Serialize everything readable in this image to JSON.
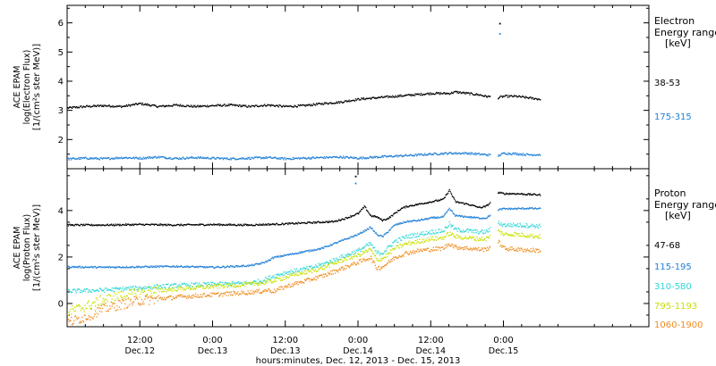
{
  "figure": {
    "xlabel": "hours:minutes, Dec. 12, 2013 - Dec. 15, 2013"
  },
  "chart_data": [
    {
      "type": "scatter",
      "panel": "electron",
      "ylabel_lines": [
        "ACE EPAM",
        "log(Electron Flux)",
        "[1/(cm²s ster MeV)]"
      ],
      "legend_title_lines": [
        "Electron",
        "Energy range",
        "[keV]"
      ],
      "xlim": [
        0,
        96
      ],
      "ylim": [
        1.0,
        6.6
      ],
      "yticks": [
        2,
        3,
        4,
        5,
        6
      ],
      "x_ticks": [
        {
          "t": 12,
          "top": "12:00",
          "bottom": "Dec.12"
        },
        {
          "t": 24,
          "top": "0:00",
          "bottom": "Dec.13"
        },
        {
          "t": 36,
          "top": "12:00",
          "bottom": "Dec.13"
        },
        {
          "t": 48,
          "top": "0:00",
          "bottom": "Dec.14"
        },
        {
          "t": 60,
          "top": "12:00",
          "bottom": "Dec.14"
        },
        {
          "t": 72,
          "top": "0:00",
          "bottom": "Dec.15"
        }
      ],
      "series": [
        {
          "name": "38-53",
          "color": "#000000",
          "x": [
            0,
            3,
            6,
            9,
            12,
            15,
            18,
            21,
            24,
            27,
            30,
            33,
            36,
            39,
            42,
            45,
            48,
            51,
            54,
            57,
            60,
            63,
            64,
            66,
            68,
            69,
            70,
            71,
            72,
            74,
            76,
            78
          ],
          "y": [
            3.1,
            3.15,
            3.18,
            3.15,
            3.25,
            3.15,
            3.2,
            3.15,
            3.18,
            3.2,
            3.15,
            3.2,
            3.15,
            3.18,
            3.25,
            3.3,
            3.4,
            3.45,
            3.5,
            3.55,
            3.6,
            3.6,
            3.65,
            3.6,
            3.55,
            3.5,
            3.48,
            3.45,
            3.5,
            3.5,
            3.45,
            3.4
          ]
        },
        {
          "name": "175-315",
          "color": "#1f7fd6",
          "x": [
            0,
            3,
            6,
            9,
            12,
            15,
            18,
            21,
            24,
            27,
            30,
            33,
            36,
            39,
            42,
            45,
            48,
            51,
            54,
            57,
            60,
            63,
            66,
            69,
            70,
            71,
            72,
            74,
            76,
            78
          ],
          "y": [
            1.35,
            1.38,
            1.36,
            1.4,
            1.38,
            1.42,
            1.37,
            1.4,
            1.38,
            1.36,
            1.38,
            1.4,
            1.36,
            1.38,
            1.4,
            1.42,
            1.38,
            1.42,
            1.45,
            1.48,
            1.52,
            1.55,
            1.55,
            1.5,
            1.48,
            1.46,
            1.55,
            1.53,
            1.5,
            1.5
          ]
        }
      ]
    },
    {
      "type": "scatter",
      "panel": "proton",
      "ylabel_lines": [
        "ACE EPAM",
        "log(Proton Flux)",
        "[1/(cm²s ster MeV)]"
      ],
      "legend_title_lines": [
        "Proton",
        "Energy range",
        "[keV]"
      ],
      "xlim": [
        0,
        96
      ],
      "ylim": [
        -1.0,
        5.8
      ],
      "yticks": [
        0,
        2,
        4
      ],
      "x_ticks": [
        {
          "t": 12,
          "top": "12:00",
          "bottom": "Dec.12"
        },
        {
          "t": 24,
          "top": "0:00",
          "bottom": "Dec.13"
        },
        {
          "t": 36,
          "top": "12:00",
          "bottom": "Dec.13"
        },
        {
          "t": 48,
          "top": "0:00",
          "bottom": "Dec.14"
        },
        {
          "t": 60,
          "top": "12:00",
          "bottom": "Dec.14"
        },
        {
          "t": 72,
          "top": "0:00",
          "bottom": "Dec.15"
        }
      ],
      "series": [
        {
          "name": "47-68",
          "color": "#000000",
          "x": [
            0,
            6,
            12,
            18,
            24,
            30,
            36,
            40,
            44,
            46,
            47,
            48,
            49,
            50,
            51,
            52,
            53,
            54,
            55,
            56,
            57,
            58,
            60,
            62,
            63,
            64,
            66,
            68,
            69,
            70,
            71,
            72,
            74,
            76,
            78
          ],
          "y": [
            3.4,
            3.4,
            3.42,
            3.4,
            3.42,
            3.4,
            3.45,
            3.5,
            3.55,
            3.7,
            3.8,
            3.9,
            4.2,
            3.8,
            3.75,
            3.6,
            3.7,
            3.9,
            4.1,
            4.2,
            4.25,
            4.3,
            4.4,
            4.5,
            4.9,
            4.4,
            4.3,
            4.15,
            4.2,
            4.4,
            4.8,
            4.75,
            4.75,
            4.72,
            4.7
          ]
        },
        {
          "name": "115-195",
          "color": "#1f7fd6",
          "x": [
            0,
            6,
            12,
            18,
            24,
            30,
            32,
            33,
            34,
            36,
            38,
            40,
            42,
            44,
            46,
            48,
            50,
            51,
            52,
            54,
            56,
            58,
            60,
            62,
            63,
            64,
            66,
            68,
            69,
            70,
            71,
            72,
            74,
            76,
            78
          ],
          "y": [
            1.6,
            1.58,
            1.6,
            1.62,
            1.58,
            1.65,
            1.75,
            1.85,
            2.0,
            2.1,
            2.2,
            2.3,
            2.4,
            2.6,
            2.8,
            3.0,
            3.3,
            3.0,
            2.9,
            3.4,
            3.55,
            3.6,
            3.7,
            3.75,
            4.1,
            3.8,
            3.75,
            3.7,
            3.7,
            3.85,
            4.05,
            4.1,
            4.1,
            4.12,
            4.1
          ]
        },
        {
          "name": "310-580",
          "color": "#2fd6d6",
          "x": [
            0,
            6,
            12,
            18,
            24,
            30,
            32,
            33,
            34,
            36,
            38,
            40,
            42,
            44,
            46,
            48,
            50,
            51,
            52,
            54,
            56,
            58,
            60,
            62,
            63,
            64,
            66,
            68,
            69,
            70,
            71,
            72,
            74,
            76,
            78
          ],
          "y": [
            0.55,
            0.6,
            0.7,
            0.8,
            0.85,
            0.9,
            1.0,
            1.1,
            1.2,
            1.35,
            1.45,
            1.55,
            1.7,
            1.9,
            2.1,
            2.3,
            2.6,
            2.2,
            2.2,
            2.7,
            2.9,
            3.0,
            3.1,
            3.15,
            3.45,
            3.2,
            3.15,
            3.1,
            3.1,
            3.25,
            3.5,
            3.4,
            3.4,
            3.38,
            3.35
          ]
        },
        {
          "name": "795-1193",
          "color": "#c8e000",
          "x": [
            0,
            3,
            6,
            9,
            12,
            18,
            24,
            30,
            32,
            33,
            34,
            36,
            38,
            40,
            42,
            44,
            46,
            48,
            50,
            51,
            52,
            54,
            56,
            58,
            60,
            62,
            63,
            64,
            66,
            68,
            69,
            70,
            71,
            72,
            74,
            76,
            78
          ],
          "y": [
            -0.35,
            -0.1,
            0.2,
            0.35,
            0.5,
            0.65,
            0.75,
            0.85,
            0.9,
            0.95,
            1.0,
            1.15,
            1.3,
            1.4,
            1.55,
            1.75,
            1.95,
            2.1,
            2.35,
            1.9,
            1.95,
            2.4,
            2.6,
            2.7,
            2.8,
            2.85,
            3.05,
            2.9,
            2.85,
            2.8,
            2.8,
            2.95,
            3.15,
            3.0,
            3.0,
            2.95,
            2.9
          ]
        },
        {
          "name": "1060-1900",
          "color": "#f08c1e",
          "x": [
            0,
            3,
            6,
            9,
            12,
            18,
            24,
            30,
            32,
            33,
            34,
            36,
            38,
            40,
            42,
            44,
            46,
            48,
            50,
            51,
            52,
            54,
            56,
            58,
            60,
            62,
            63,
            64,
            66,
            68,
            69,
            70,
            71,
            72,
            74,
            76,
            78
          ],
          "y": [
            -0.8,
            -0.55,
            -0.2,
            0.0,
            0.15,
            0.3,
            0.4,
            0.5,
            0.55,
            0.6,
            0.55,
            0.75,
            0.9,
            1.05,
            1.2,
            1.4,
            1.6,
            1.8,
            2.0,
            1.55,
            1.6,
            2.0,
            2.2,
            2.3,
            2.35,
            2.4,
            2.6,
            2.45,
            2.4,
            2.35,
            2.35,
            2.5,
            2.7,
            2.4,
            2.35,
            2.32,
            2.3
          ]
        }
      ],
      "outlier_points": [
        {
          "series": "47-68",
          "x": 47.5,
          "y": 5.5
        },
        {
          "series": "115-195",
          "x": 47.5,
          "y": 5.2
        }
      ]
    }
  ],
  "electron_outliers": [
    {
      "series": "38-53",
      "x": 71.3,
      "y": 6.0
    },
    {
      "series": "175-315",
      "x": 71.3,
      "y": 5.65
    }
  ]
}
